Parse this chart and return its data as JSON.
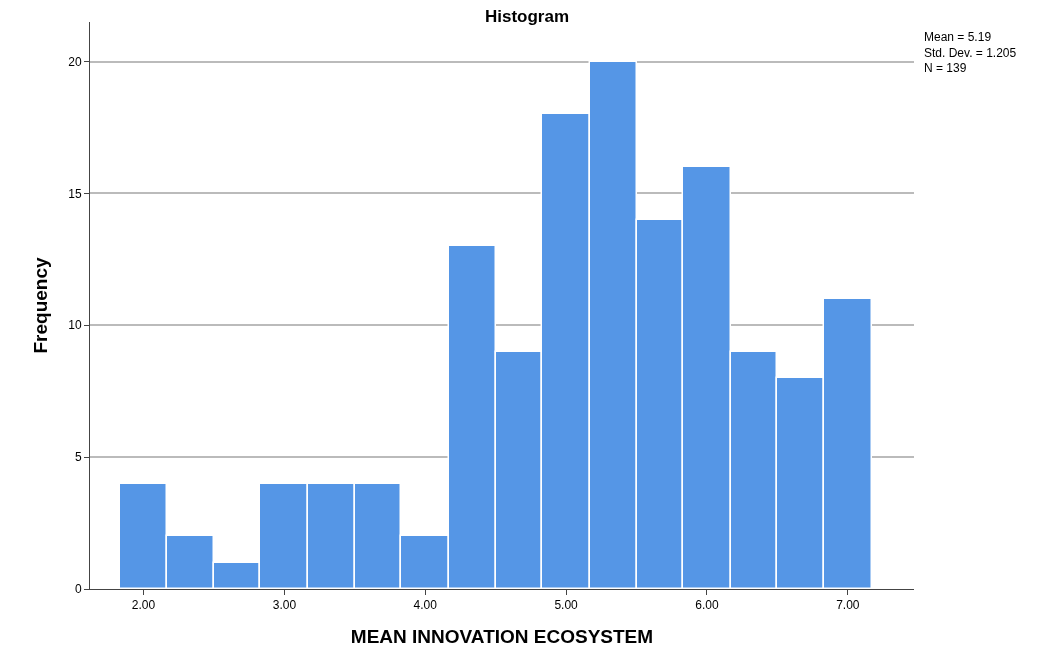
{
  "chart_data": {
    "type": "histogram",
    "title": "Histogram",
    "xlabel": "MEAN INNOVATION ECOSYSTEM",
    "ylabel": "Frequency",
    "bins": [
      1.83,
      2.17,
      2.5,
      2.83,
      3.17,
      3.5,
      3.83,
      4.17,
      4.5,
      4.83,
      5.17,
      5.5,
      5.83,
      6.17,
      6.5,
      6.83,
      7.17
    ],
    "values": [
      4,
      2,
      1,
      4,
      4,
      4,
      2,
      13,
      9,
      18,
      20,
      14,
      16,
      9,
      8,
      11
    ],
    "color": "#5596e6",
    "xlim": [
      1.62,
      7.47
    ],
    "ylim": [
      0,
      21.5
    ],
    "xticks": [
      {
        "value": 2,
        "label": "2.00"
      },
      {
        "value": 3,
        "label": "3.00"
      },
      {
        "value": 4,
        "label": "4.00"
      },
      {
        "value": 5,
        "label": "5.00"
      },
      {
        "value": 6,
        "label": "6.00"
      },
      {
        "value": 7,
        "label": "7.00"
      }
    ],
    "yticks": [
      0,
      5,
      10,
      15,
      20
    ],
    "grid": "y",
    "annotations": [
      "Mean = 5.19",
      "Std. Dev. = 1.205",
      "N = 139"
    ]
  }
}
